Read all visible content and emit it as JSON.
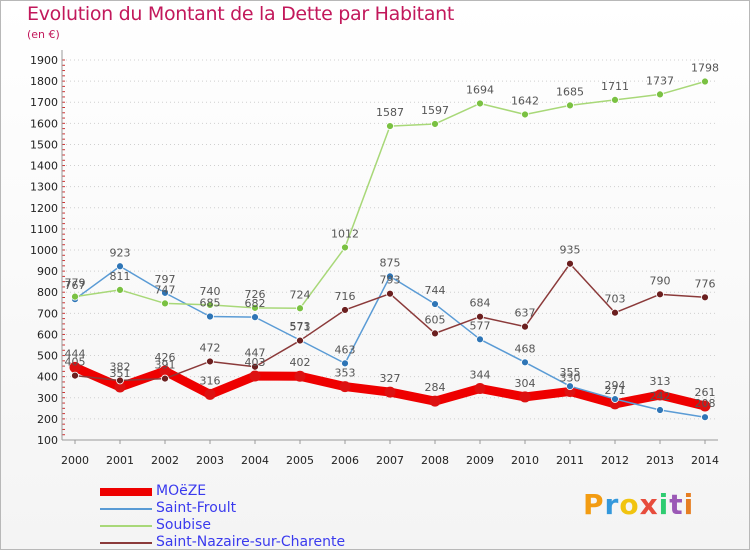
{
  "chart_data": {
    "type": "line",
    "title": "Evolution du Montant de la Dette par Habitant",
    "subtitle": "(en €)",
    "xlabel": "",
    "ylabel": "",
    "x": [
      "2000",
      "2001",
      "2002",
      "2003",
      "2004",
      "2005",
      "2006",
      "2007",
      "2008",
      "2009",
      "2010",
      "2011",
      "2012",
      "2013",
      "2014"
    ],
    "ylim": [
      100,
      1900
    ],
    "yticks": [
      100,
      200,
      300,
      400,
      500,
      600,
      700,
      800,
      900,
      1000,
      1100,
      1200,
      1300,
      1400,
      1500,
      1600,
      1700,
      1800,
      1900
    ],
    "grid": "horizontal-dotted",
    "legend_position": "bottom-left",
    "series": [
      {
        "name": "MOëZE",
        "color": "#ee0000",
        "marker": "#dd1111",
        "values": [
          444,
          351,
          426,
          316,
          403,
          402,
          353,
          327,
          284,
          344,
          304,
          330,
          271,
          313,
          261
        ],
        "labels": [
          "444",
          "351",
          "426",
          "316",
          "403",
          "402",
          "353",
          "327",
          "284",
          "344",
          "304",
          "330",
          "271",
          "313",
          "261"
        ]
      },
      {
        "name": "Saint-Froult",
        "color": "#5a9bd5",
        "marker": "#2e75b6",
        "values": [
          767,
          923,
          797,
          685,
          682,
          573,
          463,
          875,
          744,
          577,
          468,
          355,
          294,
          242,
          208
        ],
        "labels": [
          "767",
          "923",
          "797",
          "685",
          "682",
          "573",
          "463",
          "875",
          "744",
          "577",
          "468",
          "355",
          "294",
          "242",
          "208"
        ]
      },
      {
        "name": "Soubise",
        "color": "#a8d878",
        "marker": "#7ac142",
        "values": [
          779,
          811,
          747,
          740,
          726,
          724,
          1012,
          1587,
          1597,
          1694,
          1642,
          1685,
          1711,
          1737,
          1798
        ],
        "labels": [
          "779",
          "811",
          "747",
          "740",
          "726",
          "724",
          "1012",
          "1587",
          "1597",
          "1694",
          "1642",
          "1685",
          "1711",
          "1737",
          "1798"
        ]
      },
      {
        "name": "Saint-Nazaire-sur-Charente",
        "color": "#8b3a3a",
        "marker": "#6b1f1f",
        "values": [
          405,
          382,
          391,
          472,
          447,
          571,
          716,
          793,
          605,
          684,
          637,
          935,
          703,
          790,
          776
        ],
        "labels": [
          "405",
          "382",
          "391",
          "472",
          "447",
          "571",
          "716",
          "793",
          "605",
          "684",
          "637",
          "935",
          "703",
          "790",
          "776"
        ]
      }
    ]
  },
  "logo": {
    "letters": [
      "P",
      "r",
      "o",
      "x",
      "i",
      "t",
      "i"
    ],
    "colors": [
      "#f39c12",
      "#3498db",
      "#f1c40f",
      "#e74c3c",
      "#2ecc71",
      "#9b59b6",
      "#e67e22"
    ]
  }
}
